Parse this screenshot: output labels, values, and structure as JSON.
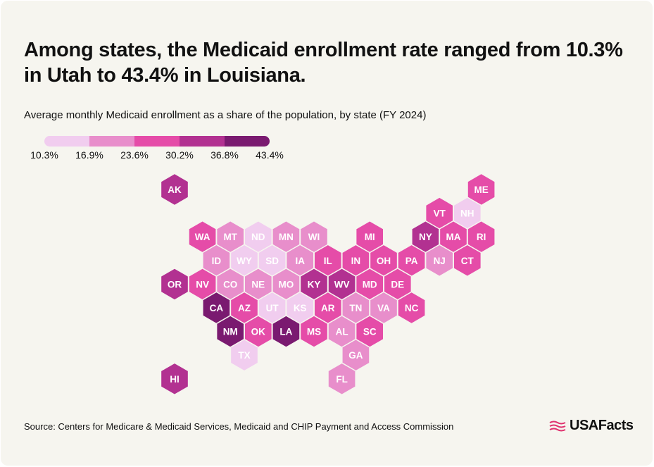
{
  "title": "Among states, the Medicaid enrollment rate ranged from 10.3% in Utah to 43.4% in Louisiana.",
  "subtitle": "Average monthly Medicaid enrollment as a share of the population, by state (FY 2024)",
  "legend": {
    "labels": [
      "10.3%",
      "16.9%",
      "23.6%",
      "30.2%",
      "36.8%",
      "43.4%"
    ],
    "colors": [
      "#f1cdef",
      "#e88ecb",
      "#e54ca8",
      "#b23191",
      "#7a1a70"
    ]
  },
  "chart_data": {
    "type": "hex-tile-map",
    "scale_bins": [
      10.3,
      16.9,
      23.6,
      30.2,
      36.8,
      43.4
    ],
    "states": [
      {
        "abbr": "AK",
        "bin": 3,
        "row": 0,
        "col": 0
      },
      {
        "abbr": "ME",
        "bin": 2,
        "row": 0,
        "col": 11
      },
      {
        "abbr": "VT",
        "bin": 2,
        "row": 1,
        "col": 9
      },
      {
        "abbr": "NH",
        "bin": 0,
        "row": 1,
        "col": 10
      },
      {
        "abbr": "WA",
        "bin": 2,
        "row": 2,
        "col": 1
      },
      {
        "abbr": "MT",
        "bin": 1,
        "row": 2,
        "col": 2
      },
      {
        "abbr": "ND",
        "bin": 0,
        "row": 2,
        "col": 3
      },
      {
        "abbr": "MN",
        "bin": 1,
        "row": 2,
        "col": 4
      },
      {
        "abbr": "WI",
        "bin": 1,
        "row": 2,
        "col": 5
      },
      {
        "abbr": "MI",
        "bin": 2,
        "row": 2,
        "col": 7
      },
      {
        "abbr": "NY",
        "bin": 3,
        "row": 2,
        "col": 9
      },
      {
        "abbr": "MA",
        "bin": 2,
        "row": 2,
        "col": 10
      },
      {
        "abbr": "RI",
        "bin": 2,
        "row": 2,
        "col": 11
      },
      {
        "abbr": "ID",
        "bin": 1,
        "row": 3,
        "col": 1
      },
      {
        "abbr": "WY",
        "bin": 0,
        "row": 3,
        "col": 2
      },
      {
        "abbr": "SD",
        "bin": 0,
        "row": 3,
        "col": 3
      },
      {
        "abbr": "IA",
        "bin": 1,
        "row": 3,
        "col": 4
      },
      {
        "abbr": "IL",
        "bin": 2,
        "row": 3,
        "col": 5
      },
      {
        "abbr": "IN",
        "bin": 2,
        "row": 3,
        "col": 6
      },
      {
        "abbr": "OH",
        "bin": 2,
        "row": 3,
        "col": 7
      },
      {
        "abbr": "PA",
        "bin": 2,
        "row": 3,
        "col": 8
      },
      {
        "abbr": "NJ",
        "bin": 1,
        "row": 3,
        "col": 9
      },
      {
        "abbr": "CT",
        "bin": 2,
        "row": 3,
        "col": 10
      },
      {
        "abbr": "OR",
        "bin": 3,
        "row": 4,
        "col": 0
      },
      {
        "abbr": "NV",
        "bin": 2,
        "row": 4,
        "col": 1
      },
      {
        "abbr": "CO",
        "bin": 1,
        "row": 4,
        "col": 2
      },
      {
        "abbr": "NE",
        "bin": 1,
        "row": 4,
        "col": 3
      },
      {
        "abbr": "MO",
        "bin": 1,
        "row": 4,
        "col": 4
      },
      {
        "abbr": "KY",
        "bin": 3,
        "row": 4,
        "col": 5
      },
      {
        "abbr": "WV",
        "bin": 3,
        "row": 4,
        "col": 6
      },
      {
        "abbr": "MD",
        "bin": 2,
        "row": 4,
        "col": 7
      },
      {
        "abbr": "DE",
        "bin": 2,
        "row": 4,
        "col": 8
      },
      {
        "abbr": "CA",
        "bin": 4,
        "row": 5,
        "col": 1
      },
      {
        "abbr": "AZ",
        "bin": 2,
        "row": 5,
        "col": 2
      },
      {
        "abbr": "UT",
        "bin": 0,
        "row": 5,
        "col": 3
      },
      {
        "abbr": "KS",
        "bin": 0,
        "row": 5,
        "col": 4
      },
      {
        "abbr": "AR",
        "bin": 2,
        "row": 5,
        "col": 5
      },
      {
        "abbr": "TN",
        "bin": 1,
        "row": 5,
        "col": 6
      },
      {
        "abbr": "VA",
        "bin": 1,
        "row": 5,
        "col": 7
      },
      {
        "abbr": "NC",
        "bin": 2,
        "row": 5,
        "col": 8
      },
      {
        "abbr": "NM",
        "bin": 4,
        "row": 6,
        "col": 2
      },
      {
        "abbr": "OK",
        "bin": 2,
        "row": 6,
        "col": 3
      },
      {
        "abbr": "LA",
        "bin": 4,
        "row": 6,
        "col": 4
      },
      {
        "abbr": "MS",
        "bin": 2,
        "row": 6,
        "col": 5
      },
      {
        "abbr": "AL",
        "bin": 1,
        "row": 6,
        "col": 6
      },
      {
        "abbr": "SC",
        "bin": 2,
        "row": 6,
        "col": 7
      },
      {
        "abbr": "TX",
        "bin": 0,
        "row": 7,
        "col": 2
      },
      {
        "abbr": "GA",
        "bin": 1,
        "row": 7,
        "col": 6
      },
      {
        "abbr": "HI",
        "bin": 3,
        "row": 8,
        "col": 0
      },
      {
        "abbr": "FL",
        "bin": 1,
        "row": 8,
        "col": 6
      }
    ]
  },
  "source": "Source: Centers for Medicare & Medicaid Services, Medicaid and CHIP Payment and Access Commission",
  "logo": {
    "text": "USAFacts"
  }
}
